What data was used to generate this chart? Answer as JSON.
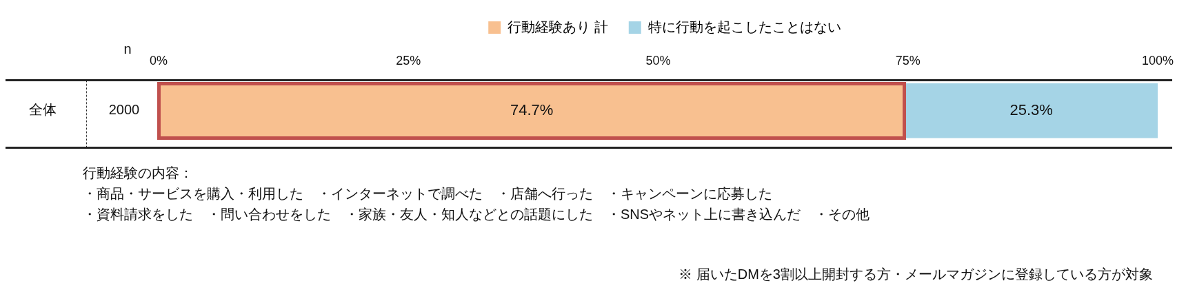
{
  "chart_data": {
    "type": "bar",
    "orientation": "horizontal",
    "stacked": true,
    "categories": [
      "全体"
    ],
    "series": [
      {
        "name": "行動経験あり 計",
        "color": "#f8c090",
        "values": [
          74.7
        ],
        "value_labels": [
          "74.7%"
        ]
      },
      {
        "name": "特に行動を起こしたことはない",
        "color": "#a5d4e6",
        "values": [
          25.3
        ],
        "value_labels": [
          "25.3%"
        ]
      }
    ],
    "xlim": [
      0,
      100
    ],
    "xticks": [
      {
        "value": 0,
        "label": "0%"
      },
      {
        "value": 25,
        "label": "25%"
      },
      {
        "value": 50,
        "label": "50%"
      },
      {
        "value": 75,
        "label": "75%"
      },
      {
        "value": 100,
        "label": "100%"
      }
    ],
    "grid": false,
    "legend": "top",
    "annotations": [
      "n",
      "2000",
      "行動経験の内容：",
      "・商品・サービスを購入・利用した　・インターネットで調べた　・店舗へ行った　・キャンペーンに応募した",
      "・資料請求をした　・問い合わせをした　・家族・友人・知人などとの話題にした　・SNSやネット上に書き込んだ　・その他",
      "※ 届いたDMを3割以上開封する方・メールマガジンに登録している方が対象"
    ]
  }
}
